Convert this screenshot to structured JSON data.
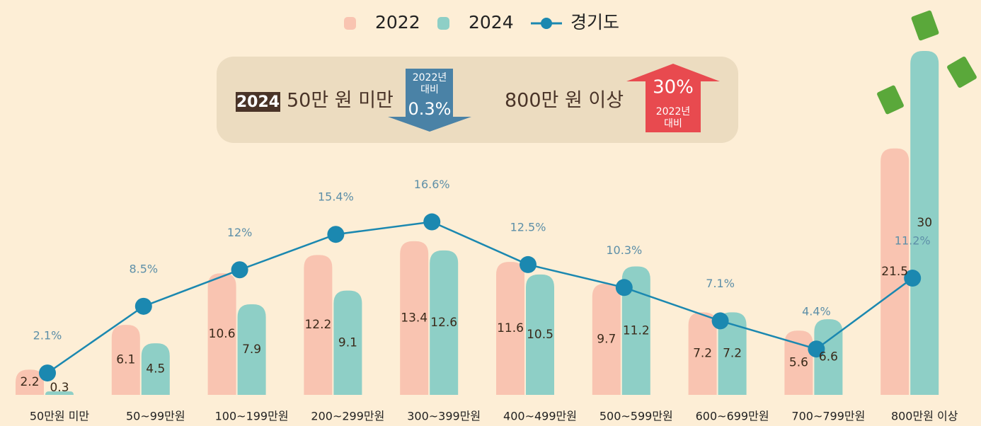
{
  "chart_data": {
    "type": "bar",
    "categories": [
      "50만원 미만",
      "50~99만원",
      "100~199만원",
      "200~299만원",
      "300~399만원",
      "400~499만원",
      "500~599만원",
      "600~699만원",
      "700~799만원",
      "800만원 이상"
    ],
    "series": [
      {
        "name": "2022",
        "color": "#f9c4b1",
        "values": [
          2.2,
          6.1,
          10.6,
          12.2,
          13.4,
          11.6,
          9.7,
          7.2,
          5.6,
          21.5
        ]
      },
      {
        "name": "2024",
        "color": "#8ecfc6",
        "values": [
          0.3,
          4.5,
          7.9,
          9.1,
          12.6,
          10.5,
          11.2,
          7.2,
          6.6,
          30
        ]
      },
      {
        "name": "경기도",
        "type": "line",
        "axis": "y2",
        "color": "#1b88b0",
        "values": [
          2.1,
          8.5,
          12,
          15.4,
          16.6,
          12.5,
          10.3,
          7.1,
          4.4,
          11.2
        ],
        "value_labels": [
          "2.1%",
          "8.5%",
          "12%",
          "15.4%",
          "16.6%",
          "12.5%",
          "10.3%",
          "7.1%",
          "4.4%",
          "11.2%"
        ]
      }
    ],
    "ylim": [
      0,
      30
    ],
    "y2lim": [
      0,
      33
    ],
    "legend": "top",
    "annotations": {
      "left": {
        "badge": "2024",
        "text": "50만 원 미만",
        "arrow_line1": "2022년",
        "arrow_line2": "대비",
        "arrow_value": "0.3%",
        "arrow_color": "#4a82a6"
      },
      "right": {
        "text": "800만 원 이상",
        "arrow_value": "30%",
        "arrow_line1": "2022년",
        "arrow_line2": "대비",
        "arrow_color": "#e84a4f"
      }
    }
  }
}
